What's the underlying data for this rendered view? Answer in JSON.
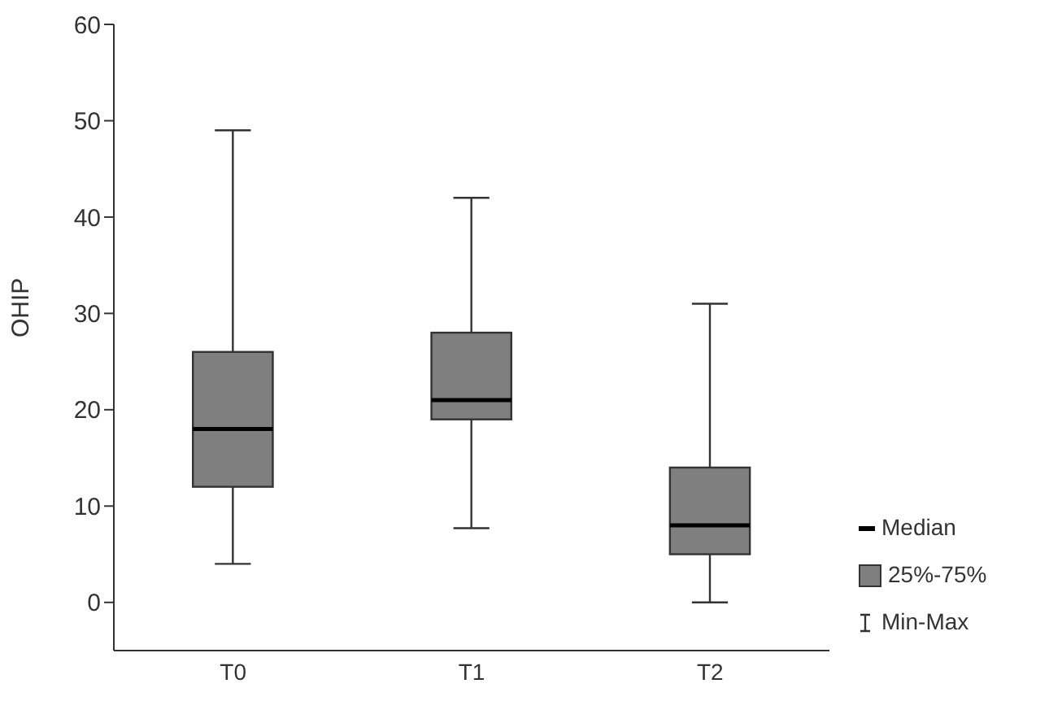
{
  "chart_data": {
    "type": "box",
    "ylabel": "OHIP",
    "categories": [
      "T0",
      "T1",
      "T2"
    ],
    "boxes": [
      {
        "low": 4,
        "q1": 12,
        "median": 18,
        "q3": 26,
        "high": 49
      },
      {
        "low": 7.7,
        "q1": 19,
        "median": 21,
        "q3": 28,
        "high": 42
      },
      {
        "low": 0,
        "q1": 5,
        "median": 8,
        "q3": 14,
        "high": 31
      }
    ],
    "color": "#7f7f7f",
    "ylim": [
      -5,
      60
    ],
    "yticks": [
      0,
      10,
      20,
      30,
      40,
      50,
      60
    ],
    "grid": false,
    "annotations": [
      "Median",
      "25%-75%",
      "Min-Max"
    ]
  }
}
